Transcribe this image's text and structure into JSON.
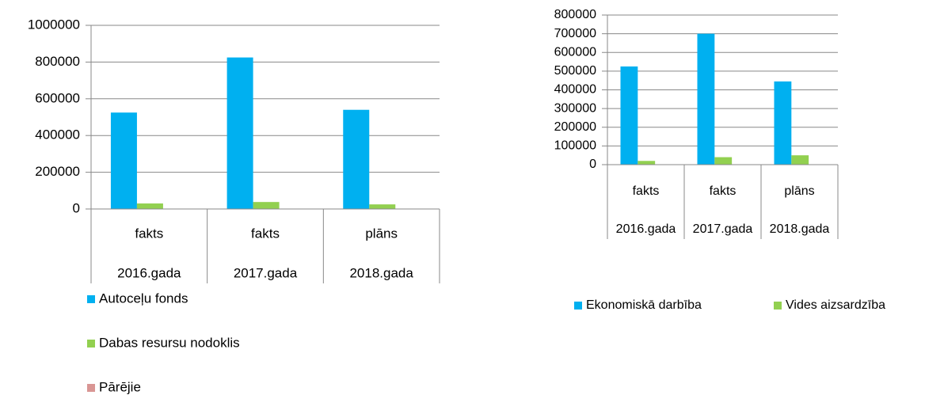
{
  "chart_data": [
    {
      "type": "bar",
      "categories": [
        "fakts",
        "fakts",
        "plāns"
      ],
      "category_groups": [
        "2016.gada",
        "2017.gada",
        "2018.gada"
      ],
      "series": [
        {
          "name": "Autoceļu fonds",
          "color": "#00b0f0",
          "values": [
            525000,
            825000,
            540000
          ]
        },
        {
          "name": "Dabas resursu nodoklis",
          "color": "#92d050",
          "values": [
            30000,
            38000,
            25000
          ]
        },
        {
          "name": "Pārējie",
          "color": "#d99694",
          "values": [
            0,
            0,
            0
          ]
        }
      ],
      "ylim": [
        0,
        1000000
      ],
      "yticks": [
        0,
        200000,
        400000,
        600000,
        800000,
        1000000
      ],
      "grid": true,
      "legend": "bottom"
    },
    {
      "type": "bar",
      "categories": [
        "fakts",
        "fakts",
        "plāns"
      ],
      "category_groups": [
        "2016.gada",
        "2017.gada",
        "2018.gada"
      ],
      "series": [
        {
          "name": "Ekonomiskā darbība",
          "color": "#00b0f0",
          "values": [
            525000,
            700000,
            445000
          ]
        },
        {
          "name": "Vides aizsardzība",
          "color": "#92d050",
          "values": [
            20000,
            40000,
            50000
          ]
        }
      ],
      "ylim": [
        0,
        800000
      ],
      "yticks": [
        0,
        100000,
        200000,
        300000,
        400000,
        500000,
        600000,
        700000,
        800000
      ],
      "grid": true,
      "legend": "bottom"
    }
  ]
}
